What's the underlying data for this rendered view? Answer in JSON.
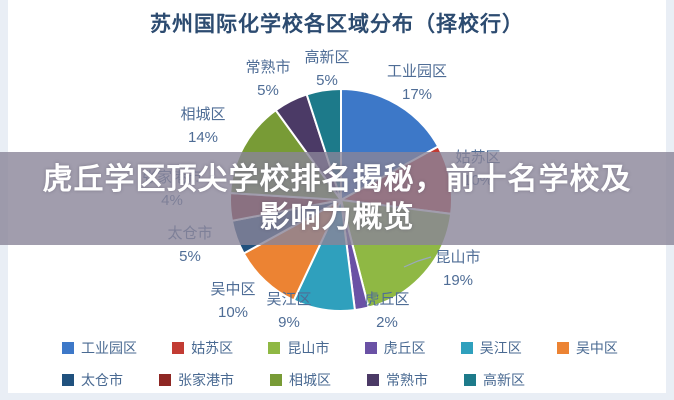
{
  "title": "苏州国际化学校各区域分布（择校行）",
  "overlay": {
    "line1": "虎丘学区顶尖学校排名揭秘，前十名学校及",
    "line2": "影响力概览"
  },
  "chart_data": {
    "type": "pie",
    "title": "苏州国际化学校各区域分布（择校行）",
    "unit": "%",
    "start_angle_deg": 0,
    "direction": "clockwise",
    "categories": [
      "工业园区",
      "姑苏区",
      "昆山市",
      "虎丘区",
      "吴江区",
      "吴中区",
      "太仓市",
      "张家港市",
      "相城区",
      "常熟市",
      "高新区"
    ],
    "values": [
      17,
      10,
      19,
      2,
      9,
      10,
      5,
      4,
      14,
      5,
      5
    ],
    "colors": [
      "#3d78c8",
      "#c23b33",
      "#8fb844",
      "#6a51a5",
      "#2fa0bd",
      "#ec8333",
      "#20517e",
      "#8e2723",
      "#789b36",
      "#4b3a66",
      "#1d7a8a"
    ],
    "label_format": "name + percent",
    "legend_position": "bottom",
    "notes": "姑苏区 and 张家港市 slice labels are partially hidden behind the overlay banner"
  },
  "legend": {
    "rows": [
      [
        "工业园区",
        "姑苏区",
        "昆山市",
        "虎丘区",
        "吴江区",
        "吴中区"
      ],
      [
        "太仓市",
        "张家港市",
        "相城区",
        "常熟市",
        "高新区"
      ]
    ]
  }
}
